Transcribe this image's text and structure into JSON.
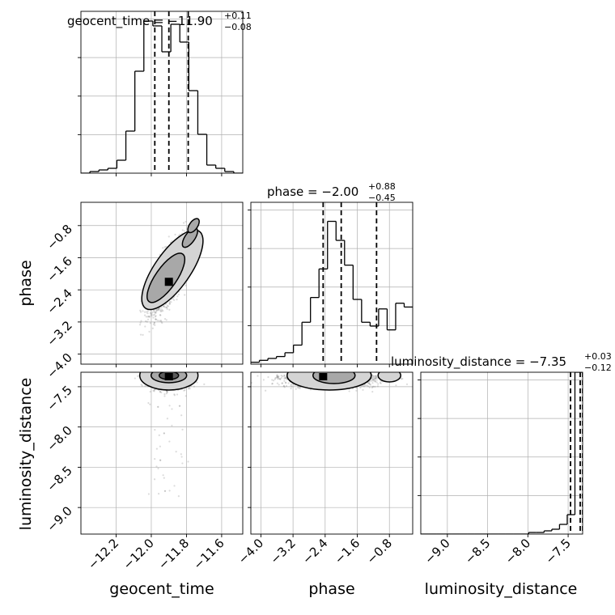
{
  "chart_data": {
    "type": "corner",
    "parameters": [
      "geocent_time",
      "phase",
      "luminosity_distance"
    ],
    "titles": [
      {
        "name": "geocent_time",
        "median": "−11.90",
        "plus": "+0.11",
        "minus": "−0.08"
      },
      {
        "name": "phase",
        "median": "−2.00",
        "plus": "+0.88",
        "minus": "−0.45"
      },
      {
        "name": "luminosity_distance",
        "median": "−7.35",
        "plus": "+0.03",
        "minus": "−0.12"
      }
    ],
    "axis_labels": {
      "x": [
        "geocent_time",
        "phase",
        "luminosity_distance"
      ],
      "y": [
        "phase",
        "luminosity_distance"
      ]
    },
    "ranges": [
      [
        -12.4,
        -11.48
      ],
      [
        -4.25,
        -0.22
      ],
      [
        -9.33,
        -7.32
      ]
    ],
    "ticks": {
      "geocent_time": [
        -12.2,
        -12.0,
        -11.8,
        -11.6
      ],
      "phase": [
        -4.0,
        -3.2,
        -2.4,
        -1.6,
        -0.8
      ],
      "luminosity_distance": [
        -9.0,
        -8.5,
        -8.0,
        -7.5
      ]
    },
    "tick_labels": {
      "geocent_time": [
        "−12.2",
        "−12.0",
        "−11.8",
        "−11.6"
      ],
      "phase": [
        "−4.0",
        "−3.2",
        "−2.4",
        "−1.6",
        "−0.8"
      ],
      "luminosity_distance": [
        "−9.0",
        "−8.5",
        "−8.0",
        "−7.5"
      ]
    },
    "quantiles": [
      [
        -11.98,
        -11.9,
        -11.79
      ],
      [
        -2.45,
        -2.0,
        -1.12
      ],
      [
        -7.47,
        -7.35,
        -7.32
      ]
    ],
    "histograms": [
      {
        "param": "geocent_time",
        "counts": [
          0,
          1,
          2,
          3,
          8,
          26,
          63,
          94,
          91,
          75,
          92,
          81,
          51,
          24,
          5,
          3,
          1,
          0
        ]
      },
      {
        "param": "phase",
        "counts": [
          1,
          2,
          3,
          4,
          6,
          10,
          22,
          35,
          50,
          75,
          65,
          52,
          34,
          22,
          20,
          29,
          18,
          32,
          30
        ]
      },
      {
        "param": "luminosity_distance",
        "counts": [
          0,
          0,
          0,
          0,
          0,
          0,
          0,
          0,
          0,
          0,
          0,
          0,
          0,
          0,
          1,
          1,
          2,
          3,
          6,
          12,
          100
        ]
      }
    ],
    "hist_ymax": [
      100,
      85,
      100
    ],
    "grid": true,
    "colors": {
      "line": "#000000",
      "quantile": "#000000",
      "samples": "#808080",
      "grid": "#b0b0b0",
      "contour_fill": [
        "#d4d4d4",
        "#a8a8a8",
        "#5a5a5a"
      ]
    }
  }
}
